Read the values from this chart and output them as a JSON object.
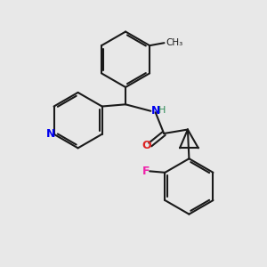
{
  "bg_color": "#e8e8e8",
  "bond_color": "#1a1a1a",
  "bond_width": 1.5,
  "N_color": "#0000ee",
  "O_color": "#dd2222",
  "F_color": "#ee22aa",
  "N_pyridine_color": "#0000ee",
  "NH_color": "#0000ee",
  "H_color": "#2e8b57",
  "CH3_color": "#1a1a1a",
  "figsize": [
    3.0,
    3.0
  ],
  "dpi": 100,
  "xlim": [
    0,
    10
  ],
  "ylim": [
    0,
    10
  ]
}
